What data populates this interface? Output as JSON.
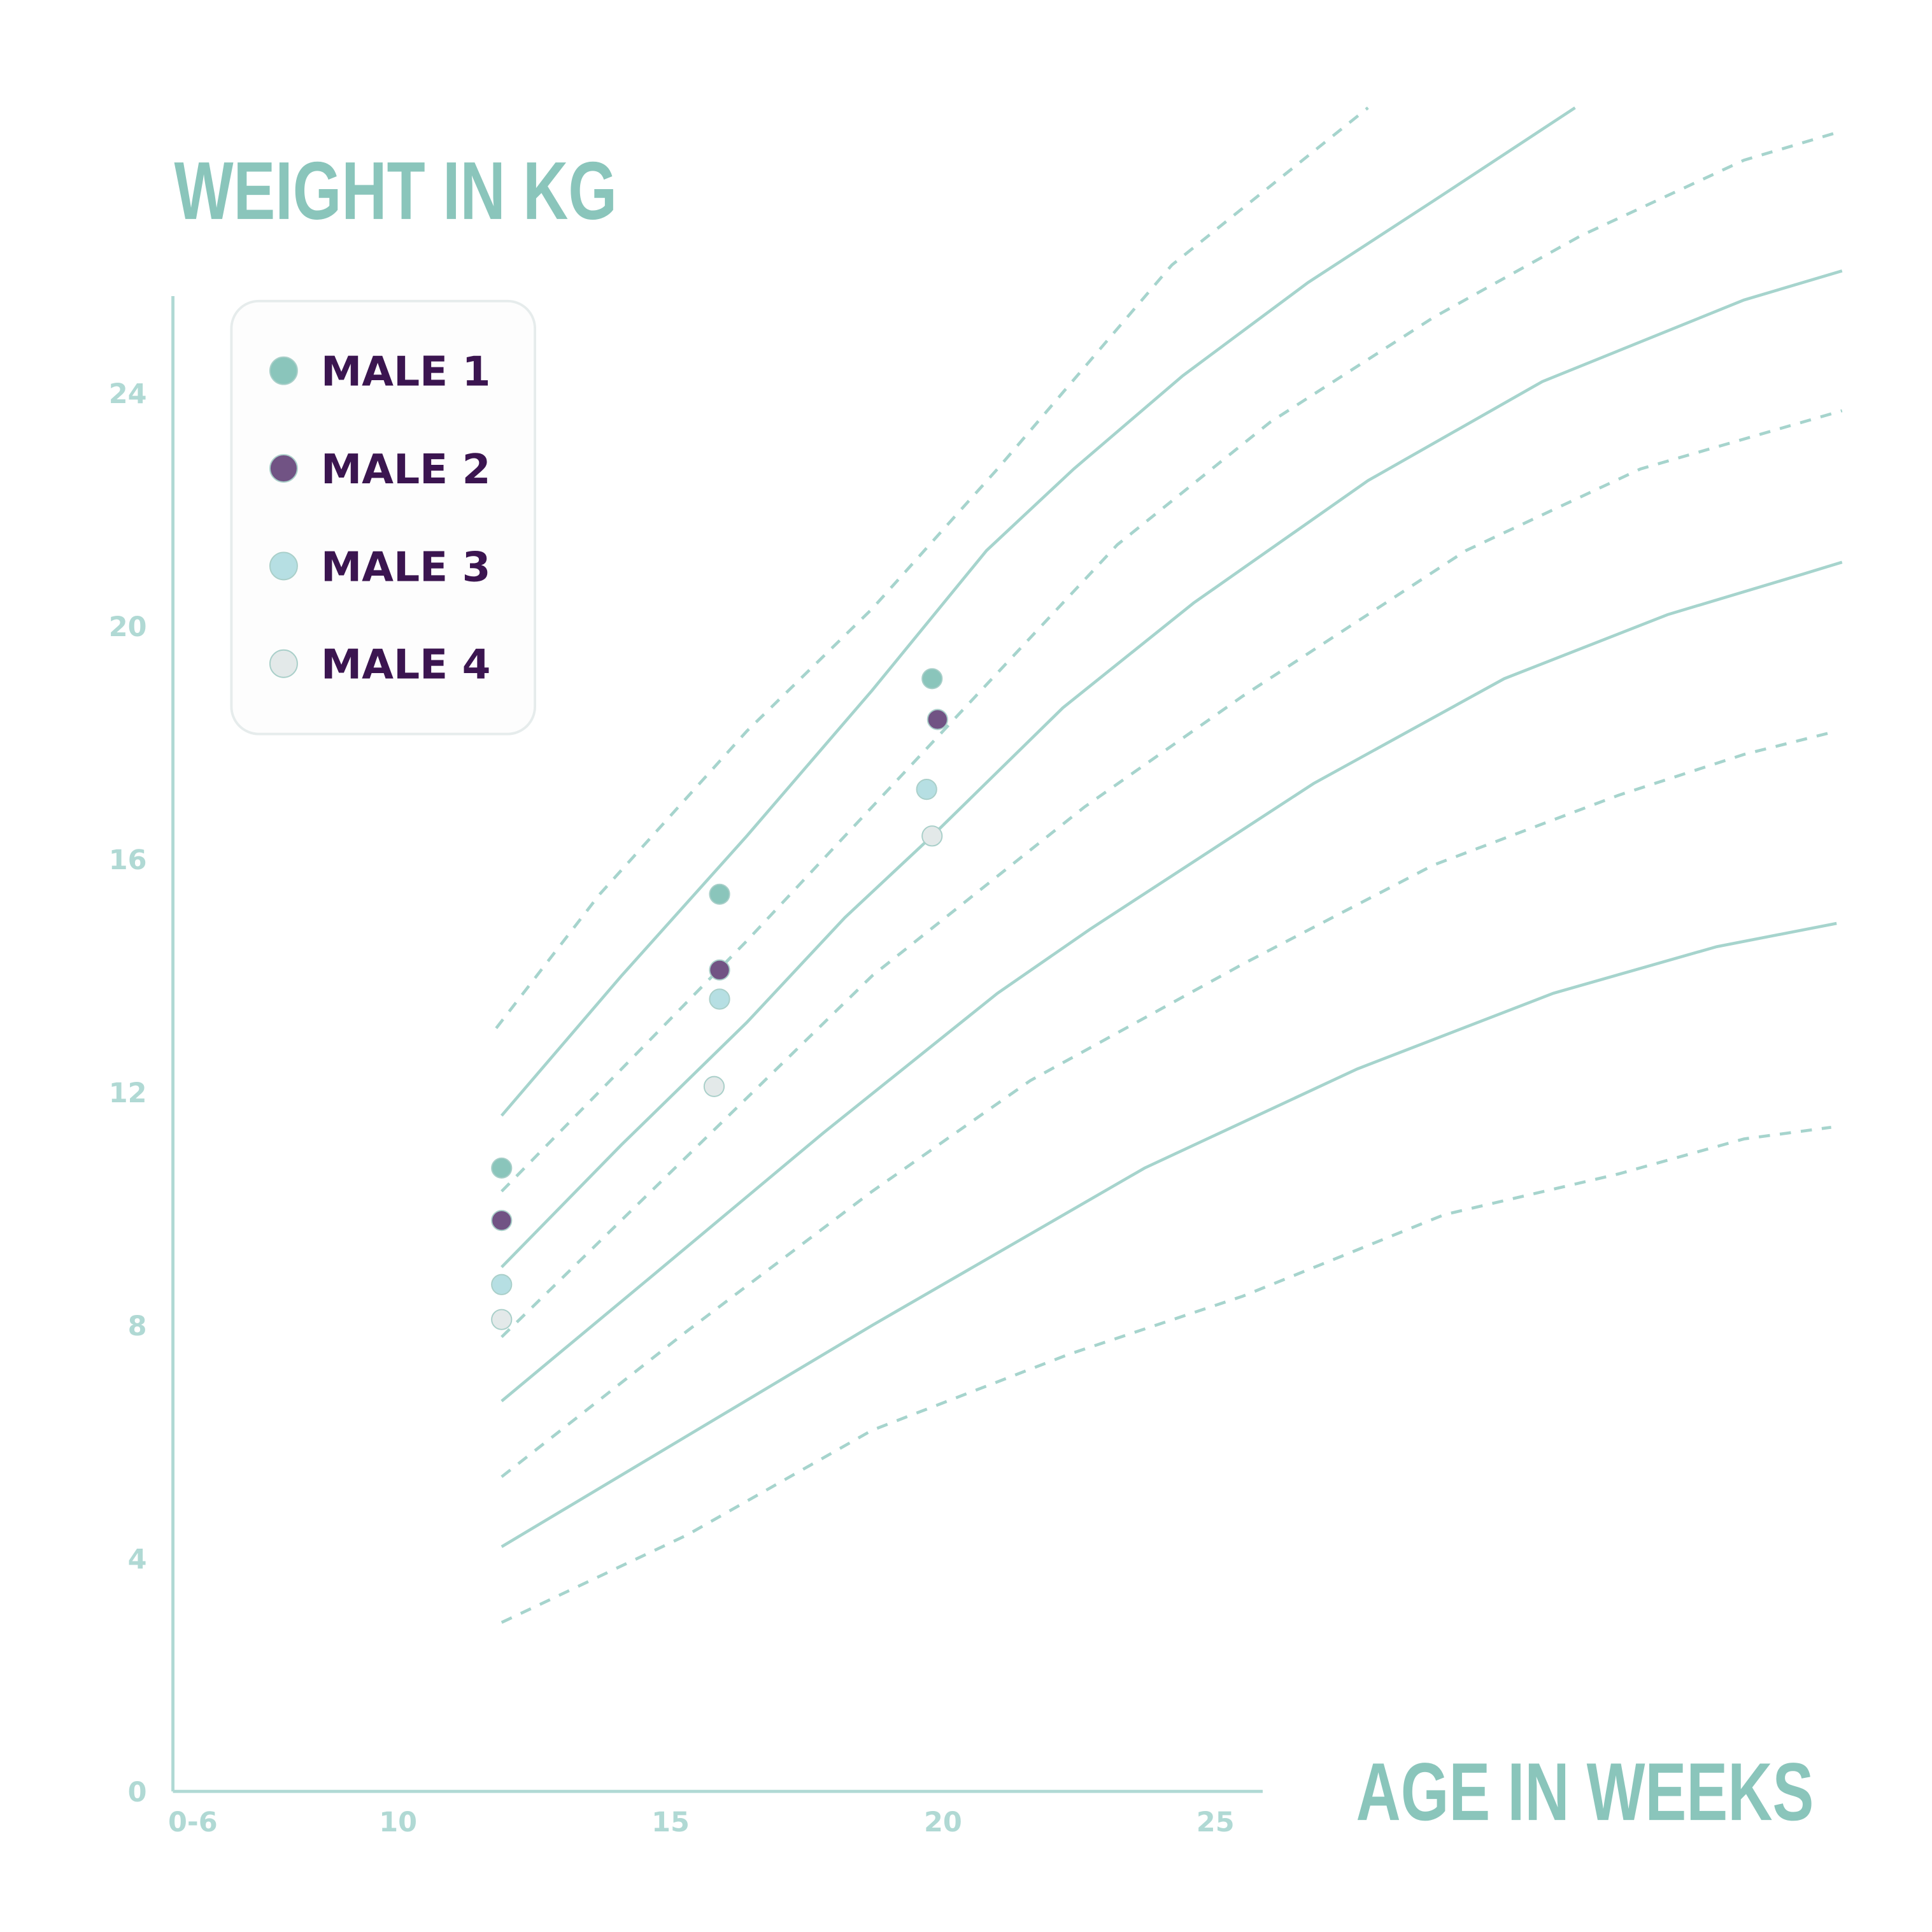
{
  "chart_data": {
    "type": "scatter",
    "title": "WEIGHT IN KG",
    "ylabel": "WEIGHT IN KG",
    "xlabel": "AGE IN WEEKS",
    "xlim": [
      5.9,
      25.9
    ],
    "ylim": [
      0,
      25.7
    ],
    "x_ticks": [
      {
        "value": 6,
        "label": "0-6"
      },
      {
        "value": 10,
        "label": "10"
      },
      {
        "value": 15,
        "label": "15"
      },
      {
        "value": 20,
        "label": "20"
      },
      {
        "value": 25,
        "label": "25"
      }
    ],
    "y_ticks": [
      {
        "value": 0,
        "label": "0"
      },
      {
        "value": 4,
        "label": "4"
      },
      {
        "value": 8,
        "label": "8"
      },
      {
        "value": 12,
        "label": "12"
      },
      {
        "value": 16,
        "label": "16"
      },
      {
        "value": 20,
        "label": "20"
      },
      {
        "value": 24,
        "label": "24"
      }
    ],
    "grid": false,
    "legend_position": "top-left",
    "series": [
      {
        "name": "MALE 1",
        "color": "#8ac5bb",
        "x": [
          11.9,
          15.9,
          19.8
        ],
        "y": [
          10.7,
          15.4,
          19.1
        ]
      },
      {
        "name": "MALE 2",
        "color": "#715384",
        "x": [
          11.9,
          15.9,
          19.9
        ],
        "y": [
          9.8,
          14.1,
          18.4
        ]
      },
      {
        "name": "MALE 3",
        "color": "#b6dfe3",
        "x": [
          11.9,
          15.9,
          19.7
        ],
        "y": [
          8.7,
          13.6,
          17.2
        ]
      },
      {
        "name": "MALE 4",
        "color": "#e3e9e9",
        "x": [
          11.9,
          15.8,
          19.8
        ],
        "y": [
          8.1,
          12.1,
          16.4
        ]
      }
    ],
    "reference_curves": [
      {
        "style": "dashed",
        "points": [
          [
            11.8,
            13.1
          ],
          [
            13.7,
            15.4
          ],
          [
            16.4,
            18.2
          ],
          [
            18.7,
            20.3
          ],
          [
            21.0,
            22.7
          ],
          [
            24.2,
            26.2
          ],
          [
            27.8,
            28.9
          ]
        ]
      },
      {
        "style": "solid",
        "points": [
          [
            11.9,
            11.6
          ],
          [
            14.1,
            14.0
          ],
          [
            16.4,
            16.4
          ],
          [
            18.7,
            18.9
          ],
          [
            20.8,
            21.3
          ],
          [
            22.4,
            22.7
          ],
          [
            24.4,
            24.3
          ],
          [
            26.7,
            25.9
          ],
          [
            29.0,
            27.3
          ],
          [
            31.6,
            28.9
          ]
        ]
      },
      {
        "style": "dashed",
        "points": [
          [
            11.9,
            10.3
          ],
          [
            14.1,
            12.4
          ],
          [
            16.4,
            14.6
          ],
          [
            18.7,
            16.9
          ],
          [
            21.0,
            19.2
          ],
          [
            23.2,
            21.4
          ],
          [
            26.0,
            23.5
          ],
          [
            29.0,
            25.3
          ],
          [
            31.7,
            26.7
          ],
          [
            34.7,
            28.0
          ],
          [
            36.5,
            28.5
          ]
        ]
      },
      {
        "style": "solid",
        "points": [
          [
            11.9,
            9.0
          ],
          [
            14.1,
            11.1
          ],
          [
            16.4,
            13.2
          ],
          [
            18.2,
            15.0
          ],
          [
            19.8,
            16.4
          ],
          [
            22.2,
            18.6
          ],
          [
            24.6,
            20.4
          ],
          [
            27.8,
            22.5
          ],
          [
            31.0,
            24.2
          ],
          [
            34.7,
            25.6
          ],
          [
            36.5,
            26.1
          ]
        ]
      },
      {
        "style": "dashed",
        "points": [
          [
            11.9,
            7.8
          ],
          [
            15.3,
            10.9
          ],
          [
            18.7,
            14.0
          ],
          [
            22.6,
            16.9
          ],
          [
            25.5,
            18.8
          ],
          [
            29.6,
            21.3
          ],
          [
            32.8,
            22.7
          ],
          [
            36.5,
            23.7
          ]
        ]
      },
      {
        "style": "solid",
        "points": [
          [
            11.9,
            6.7
          ],
          [
            14.6,
            8.8
          ],
          [
            17.8,
            11.3
          ],
          [
            21.0,
            13.7
          ],
          [
            22.7,
            14.8
          ],
          [
            26.8,
            17.3
          ],
          [
            30.3,
            19.1
          ],
          [
            33.3,
            20.2
          ],
          [
            35.8,
            20.9
          ],
          [
            36.5,
            21.1
          ]
        ]
      },
      {
        "style": "dashed",
        "points": [
          [
            11.9,
            5.4
          ],
          [
            15.3,
            7.9
          ],
          [
            18.7,
            10.3
          ],
          [
            21.6,
            12.2
          ],
          [
            25.5,
            14.2
          ],
          [
            29.0,
            15.9
          ],
          [
            32.4,
            17.1
          ],
          [
            34.7,
            17.8
          ],
          [
            36.4,
            18.2
          ]
        ]
      },
      {
        "style": "solid",
        "points": [
          [
            11.9,
            4.2
          ],
          [
            15.3,
            6.1
          ],
          [
            18.7,
            8.0
          ],
          [
            23.7,
            10.7
          ],
          [
            27.6,
            12.4
          ],
          [
            31.2,
            13.7
          ],
          [
            34.2,
            14.5
          ],
          [
            36.4,
            14.9
          ]
        ]
      },
      {
        "style": "dashed",
        "points": [
          [
            11.9,
            2.9
          ],
          [
            15.3,
            4.4
          ],
          [
            18.7,
            6.2
          ],
          [
            22.3,
            7.5
          ],
          [
            25.5,
            8.5
          ],
          [
            29.2,
            9.9
          ],
          [
            32.4,
            10.6
          ],
          [
            34.7,
            11.2
          ],
          [
            36.3,
            11.4
          ]
        ]
      }
    ],
    "curve_color": "#a6d4cd",
    "axis_color": "#b0d9d4",
    "label_color": "#3b1550"
  }
}
